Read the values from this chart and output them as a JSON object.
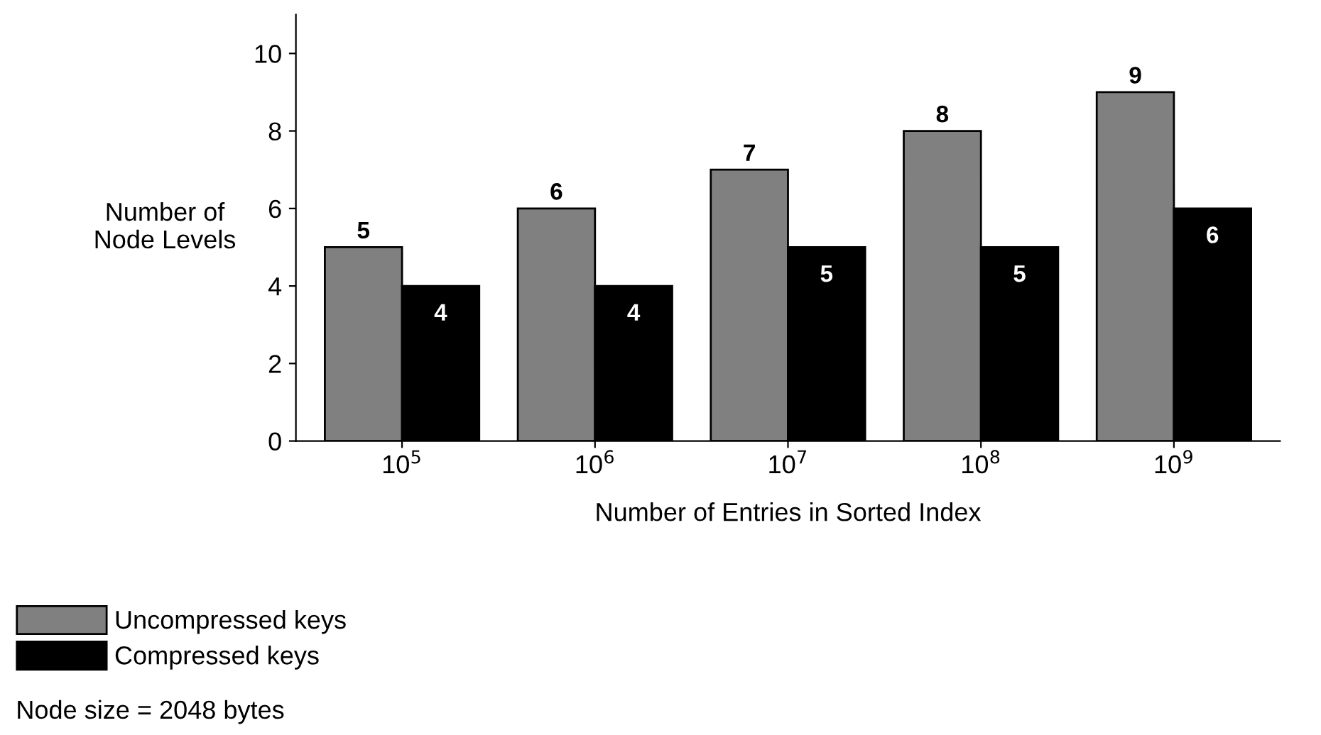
{
  "chart_data": {
    "type": "bar",
    "categories": [
      "10$^{5}$",
      "10$^{6}$",
      "10$^{7}$",
      "10$^{8}$",
      "10$^{9}$"
    ],
    "series": [
      {
        "name": "Uncompressed keys",
        "color": "#808080",
        "values": [
          5,
          6,
          7,
          8,
          9
        ]
      },
      {
        "name": "Compressed keys",
        "color": "#000000",
        "values": [
          4,
          4,
          5,
          5,
          6
        ]
      }
    ],
    "xlabel": "Number of Entries in Sorted Index",
    "ylabel": "Number of\nNode Levels",
    "ylim": [
      0,
      11
    ],
    "yticks": [
      0,
      2,
      4,
      6,
      8,
      10
    ],
    "grid": false,
    "data_labels": true,
    "legend": "bottom left",
    "annotations": [
      "Node size = 2048 bytes"
    ]
  }
}
